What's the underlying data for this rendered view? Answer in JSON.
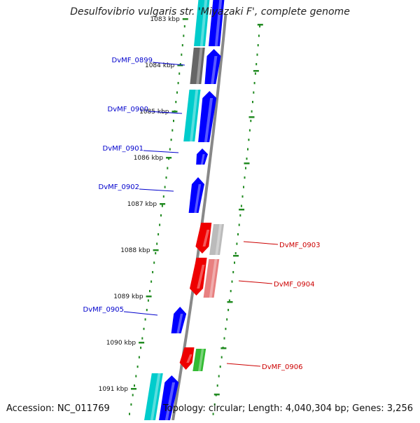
{
  "title": "Desulfovibrio vulgaris str. 'Miyazaki F', complete genome",
  "footer": {
    "accession": "Accession: NC_011769",
    "topology": "Topology: circular; Length: 4,040,304 bp; Genes: 3,256"
  },
  "colors": {
    "backbone": "#888888",
    "scale_ticks": "#228B22",
    "label_forward": "#0000cc",
    "label_reverse": "#cc0000",
    "cds_blue": "#0000ff",
    "cds_cyan": "#00cccc",
    "cds_gray": "#666666",
    "cds_red": "#ee0000",
    "cds_pink": "#e88080",
    "cds_lightgray": "#bbbbbb",
    "cds_green": "#33bb33"
  },
  "scale_labels": [
    "1083 kbp",
    "1084 kbp",
    "1085 kbp",
    "1086 kbp",
    "1087 kbp",
    "1088 kbp",
    "1089 kbp",
    "1090 kbp",
    "1091 kbp"
  ],
  "genes_forward": [
    {
      "label": "DvMF_0899"
    },
    {
      "label": "DvMF_0900"
    },
    {
      "label": "DvMF_0901"
    },
    {
      "label": "DvMF_0902"
    },
    {
      "label": "DvMF_0905"
    }
  ],
  "genes_reverse": [
    {
      "label": "DvMF_0903"
    },
    {
      "label": "DvMF_0904"
    },
    {
      "label": "DvMF_0906"
    }
  ]
}
